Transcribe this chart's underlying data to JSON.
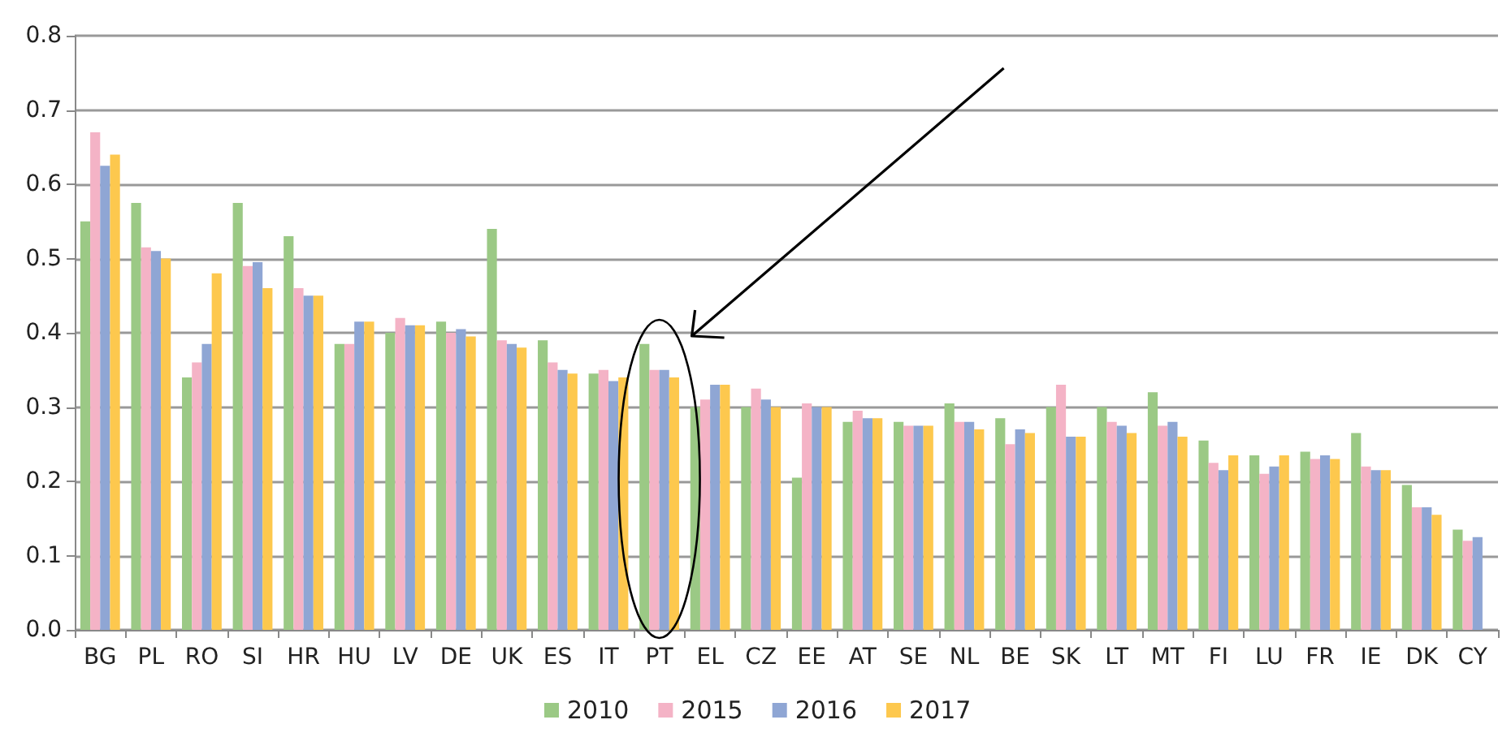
{
  "chart_data": {
    "type": "bar",
    "categories": [
      "BG",
      "PL",
      "RO",
      "SI",
      "HR",
      "HU",
      "LV",
      "DE",
      "UK",
      "ES",
      "IT",
      "PT",
      "EL",
      "CZ",
      "EE",
      "AT",
      "SE",
      "NL",
      "BE",
      "SK",
      "LT",
      "MT",
      "FI",
      "LU",
      "FR",
      "IE",
      "DK",
      "CY"
    ],
    "series": [
      {
        "name": "2010",
        "color": "#9bc985",
        "values": [
          0.55,
          0.575,
          0.34,
          0.575,
          0.53,
          0.385,
          0.4,
          0.415,
          0.54,
          0.39,
          0.345,
          0.385,
          0.3,
          0.3,
          0.205,
          0.28,
          0.28,
          0.305,
          0.285,
          0.3,
          0.3,
          0.32,
          0.255,
          0.235,
          0.24,
          0.265,
          0.195,
          0.135
        ]
      },
      {
        "name": "2015",
        "color": "#f4b3c6",
        "values": [
          0.67,
          0.515,
          0.36,
          0.49,
          0.46,
          0.385,
          0.42,
          0.4,
          0.39,
          0.36,
          0.35,
          0.35,
          0.31,
          0.325,
          0.305,
          0.295,
          0.275,
          0.28,
          0.25,
          0.33,
          0.28,
          0.275,
          0.225,
          0.21,
          0.23,
          0.22,
          0.165,
          0.12
        ]
      },
      {
        "name": "2016",
        "color": "#8fa6d4",
        "values": [
          0.625,
          0.51,
          0.385,
          0.495,
          0.45,
          0.415,
          0.41,
          0.405,
          0.385,
          0.35,
          0.335,
          0.35,
          0.33,
          0.31,
          0.3,
          0.285,
          0.275,
          0.28,
          0.27,
          0.26,
          0.275,
          0.28,
          0.215,
          0.22,
          0.235,
          0.215,
          0.165,
          0.125
        ]
      },
      {
        "name": "2017",
        "color": "#fdc84e",
        "values": [
          0.64,
          0.5,
          0.48,
          0.46,
          0.45,
          0.415,
          0.41,
          0.395,
          0.38,
          0.345,
          0.34,
          0.34,
          0.33,
          0.3,
          0.3,
          0.285,
          0.275,
          0.27,
          0.265,
          0.26,
          0.265,
          0.26,
          0.235,
          0.235,
          0.23,
          0.215,
          0.155,
          null
        ]
      }
    ],
    "ylim": [
      0,
      0.8
    ],
    "yticks": [
      {
        "value": 0,
        "label": "0.0"
      },
      0.1,
      0.2,
      0.3,
      0.4,
      0.5,
      0.6,
      0.7,
      0.8
    ],
    "grid": "y",
    "legend": "bottom"
  }
}
